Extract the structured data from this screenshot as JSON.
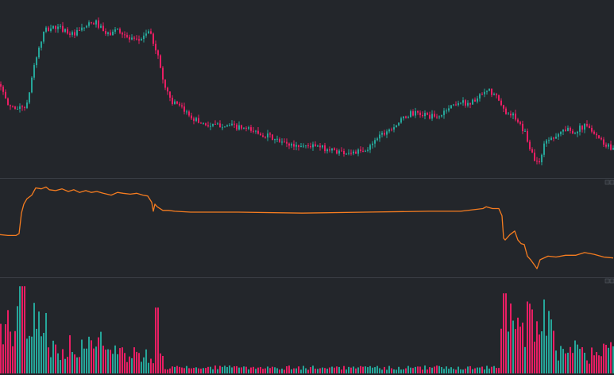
{
  "colors": {
    "background": "#23262b",
    "up": "#26a69a",
    "down": "#e91e63",
    "indicator": "#f57c20",
    "divider": "#3a3e45"
  },
  "chart_data": [
    {
      "type": "candlestick",
      "pane": "price",
      "grid": false,
      "ylim": [
        0,
        100
      ],
      "anchors": [
        [
          0,
          55
        ],
        [
          4,
          47
        ],
        [
          9,
          42
        ],
        [
          15,
          41
        ],
        [
          22,
          40
        ],
        [
          33,
          42
        ],
        [
          42,
          67
        ],
        [
          55,
          88
        ],
        [
          66,
          90
        ],
        [
          78,
          89
        ],
        [
          92,
          85
        ],
        [
          108,
          91
        ],
        [
          120,
          93
        ],
        [
          133,
          85
        ],
        [
          148,
          89
        ],
        [
          160,
          83
        ],
        [
          172,
          81
        ],
        [
          186,
          88
        ],
        [
          196,
          76
        ],
        [
          206,
          54
        ],
        [
          216,
          44
        ],
        [
          232,
          38
        ],
        [
          248,
          32
        ],
        [
          265,
          29
        ],
        [
          282,
          30
        ],
        [
          300,
          28
        ],
        [
          318,
          26
        ],
        [
          336,
          23
        ],
        [
          352,
          19
        ],
        [
          370,
          17
        ],
        [
          390,
          17
        ],
        [
          410,
          15
        ],
        [
          430,
          13
        ],
        [
          446,
          13
        ],
        [
          460,
          13
        ],
        [
          472,
          22
        ],
        [
          485,
          26
        ],
        [
          500,
          31
        ],
        [
          516,
          37
        ],
        [
          534,
          36
        ],
        [
          550,
          34
        ],
        [
          562,
          40
        ],
        [
          576,
          44
        ],
        [
          590,
          43
        ],
        [
          606,
          48
        ],
        [
          614,
          51
        ],
        [
          624,
          47
        ],
        [
          634,
          38
        ],
        [
          643,
          37
        ],
        [
          652,
          30
        ],
        [
          660,
          25
        ],
        [
          668,
          13
        ],
        [
          676,
          5
        ],
        [
          686,
          20
        ],
        [
          697,
          23
        ],
        [
          710,
          27
        ],
        [
          722,
          26
        ],
        [
          735,
          29
        ],
        [
          745,
          27
        ],
        [
          756,
          20
        ],
        [
          764,
          17
        ],
        [
          772,
          15
        ]
      ]
    },
    {
      "type": "line",
      "pane": "indicator",
      "grid": false,
      "ylim": [
        0,
        100
      ],
      "x": [
        0,
        10,
        20,
        24,
        27,
        30,
        34,
        40,
        45,
        52,
        58,
        62,
        70,
        78,
        86,
        93,
        100,
        108,
        115,
        122,
        130,
        140,
        148,
        155,
        164,
        172,
        180,
        186,
        191,
        193,
        195,
        198,
        205,
        212,
        220,
        240,
        300,
        380,
        460,
        540,
        580,
        608,
        612,
        620,
        628,
        632,
        634,
        636,
        642,
        648,
        652,
        656,
        660,
        664,
        668,
        673,
        676,
        680,
        690,
        700,
        712,
        725,
        736,
        748,
        760,
        772
      ],
      "values": [
        44,
        43,
        43,
        45,
        68,
        78,
        84,
        88,
        96,
        95,
        97,
        94,
        93,
        95,
        92,
        94,
        91,
        93,
        91,
        92,
        90,
        88,
        91,
        90,
        89,
        90,
        88,
        87,
        80,
        70,
        78,
        75,
        71,
        71,
        70,
        69,
        69,
        68,
        69,
        70,
        70,
        73,
        75,
        73,
        73,
        65,
        40,
        38,
        44,
        48,
        38,
        34,
        33,
        20,
        16,
        10,
        6,
        16,
        20,
        19,
        21,
        21,
        24,
        22,
        19,
        18
      ]
    },
    {
      "type": "bar",
      "pane": "volume",
      "grid": false,
      "ylim": [
        0,
        100
      ]
    }
  ]
}
